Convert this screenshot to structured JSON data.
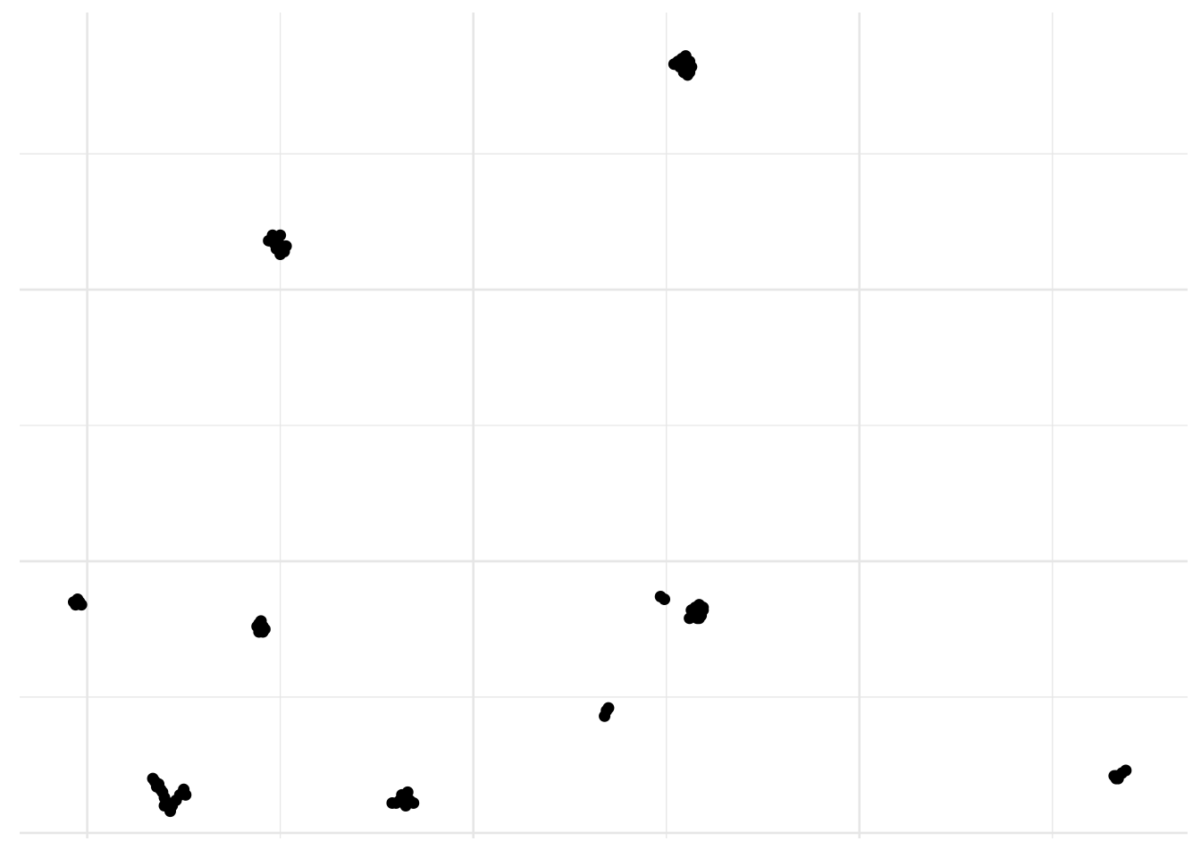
{
  "chart_data": {
    "type": "scatter",
    "title": "",
    "xlabel": "",
    "ylabel": "",
    "xlim": [
      -0.35,
      5.7
    ],
    "ylim": [
      -0.02,
      3.02
    ],
    "x_major_ticks": [
      0,
      2,
      4
    ],
    "x_minor_ticks": [
      1,
      3,
      5
    ],
    "y_major_ticks": [
      0,
      1,
      2
    ],
    "y_minor_ticks": [
      0.5,
      1.5,
      2.5
    ],
    "grid": true,
    "colors": {
      "points": "#000000",
      "grid": "#e6e6e6",
      "background": "#ffffff"
    },
    "points": [
      [
        3.04,
        2.83
      ],
      [
        3.06,
        2.84
      ],
      [
        3.08,
        2.85
      ],
      [
        3.1,
        2.86
      ],
      [
        3.12,
        2.84
      ],
      [
        3.13,
        2.82
      ],
      [
        3.1,
        2.82
      ],
      [
        3.07,
        2.82
      ],
      [
        3.09,
        2.8
      ],
      [
        3.11,
        2.79
      ],
      [
        3.12,
        2.8
      ],
      [
        3.05,
        2.83
      ],
      [
        0.94,
        2.18
      ],
      [
        0.96,
        2.2
      ],
      [
        0.98,
        2.19
      ],
      [
        0.99,
        2.17
      ],
      [
        1.01,
        2.16
      ],
      [
        1.02,
        2.14
      ],
      [
        1.0,
        2.13
      ],
      [
        0.98,
        2.15
      ],
      [
        0.97,
        2.17
      ],
      [
        1.0,
        2.2
      ],
      [
        1.03,
        2.16
      ],
      [
        -0.07,
        0.85
      ],
      [
        -0.05,
        0.86
      ],
      [
        -0.04,
        0.85
      ],
      [
        -0.03,
        0.84
      ],
      [
        -0.06,
        0.84
      ],
      [
        0.88,
        0.76
      ],
      [
        0.89,
        0.77
      ],
      [
        0.9,
        0.78
      ],
      [
        0.91,
        0.76
      ],
      [
        0.92,
        0.75
      ],
      [
        0.89,
        0.74
      ],
      [
        0.91,
        0.74
      ],
      [
        2.97,
        0.87
      ],
      [
        2.99,
        0.86
      ],
      [
        3.12,
        0.79
      ],
      [
        3.13,
        0.82
      ],
      [
        3.15,
        0.83
      ],
      [
        3.17,
        0.84
      ],
      [
        3.19,
        0.83
      ],
      [
        3.18,
        0.8
      ],
      [
        3.16,
        0.79
      ],
      [
        3.14,
        0.8
      ],
      [
        3.17,
        0.79
      ],
      [
        3.19,
        0.82
      ],
      [
        3.15,
        0.81
      ],
      [
        2.68,
        0.43
      ],
      [
        2.69,
        0.45
      ],
      [
        2.7,
        0.46
      ],
      [
        0.34,
        0.2
      ],
      [
        0.35,
        0.19
      ],
      [
        0.37,
        0.18
      ],
      [
        0.38,
        0.16
      ],
      [
        0.39,
        0.15
      ],
      [
        0.4,
        0.13
      ],
      [
        0.42,
        0.11
      ],
      [
        0.43,
        0.08
      ],
      [
        0.44,
        0.1
      ],
      [
        0.46,
        0.12
      ],
      [
        0.48,
        0.14
      ],
      [
        0.5,
        0.16
      ],
      [
        0.51,
        0.14
      ],
      [
        0.4,
        0.1
      ],
      [
        0.36,
        0.17
      ],
      [
        1.58,
        0.11
      ],
      [
        1.6,
        0.11
      ],
      [
        1.62,
        0.12
      ],
      [
        1.63,
        0.14
      ],
      [
        1.66,
        0.15
      ],
      [
        1.67,
        0.12
      ],
      [
        1.69,
        0.11
      ],
      [
        1.65,
        0.1
      ],
      [
        1.64,
        0.13
      ],
      [
        5.32,
        0.21
      ],
      [
        5.33,
        0.2
      ],
      [
        5.34,
        0.2
      ],
      [
        5.36,
        0.22
      ],
      [
        5.38,
        0.23
      ],
      [
        5.33,
        0.21
      ]
    ]
  }
}
